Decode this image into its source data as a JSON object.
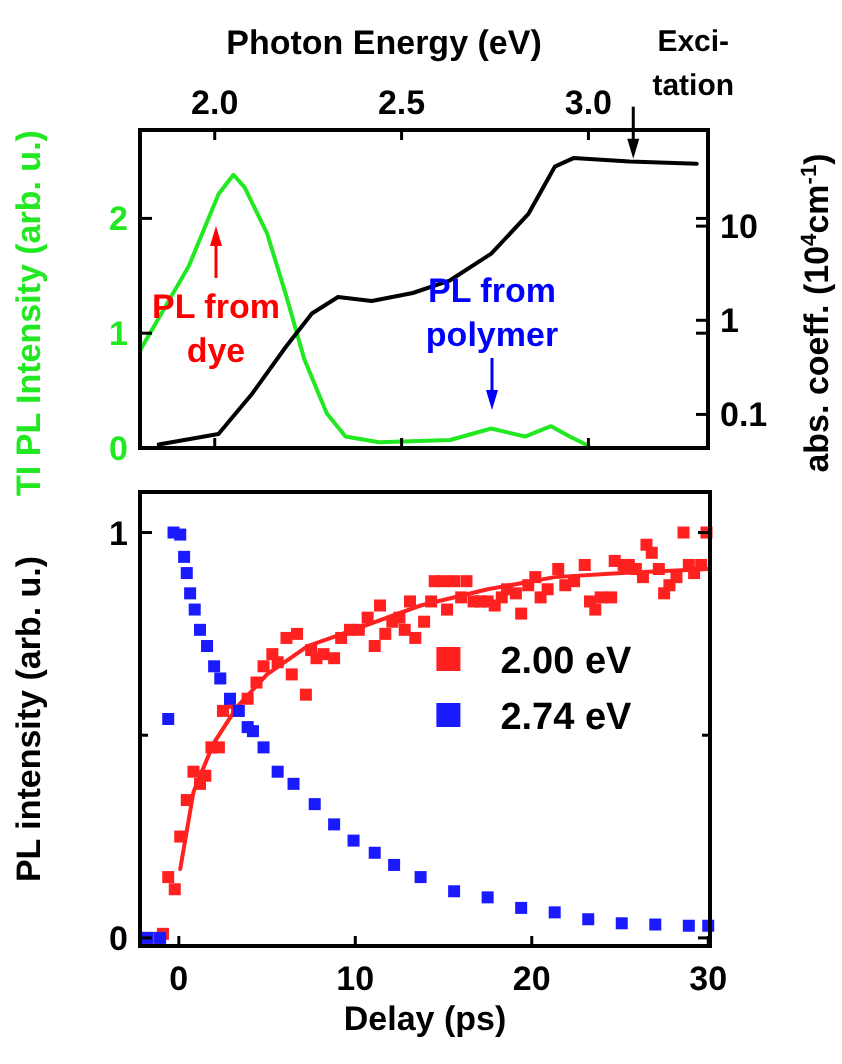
{
  "chart_data": [
    {
      "type": "line",
      "xlabel": "Photon Energy (eV)",
      "ylabel": "TI PL Intensity (arb. u.)",
      "y2label": "abs. coeff. (10$^{4}$cm$^{-1}$)",
      "xlim": [
        1.8,
        3.32
      ],
      "xticks": [
        {
          "value": 2,
          "label": "2.0"
        },
        {
          "value": 2.5,
          "label": "2.5"
        },
        {
          "value": 3,
          "label": "3.0"
        }
      ],
      "ylim": [
        0,
        2.77
      ],
      "yticks": [
        0,
        1,
        2
      ],
      "y2lim": [
        0.044,
        105
      ],
      "y2ticks": [
        0.1,
        1,
        10
      ],
      "log": "y2",
      "grid": false,
      "legend": false,
      "series": [
        {
          "color": "#22e822",
          "x": [
            1.8,
            1.93,
            2.01,
            2.05,
            2.08,
            2.14,
            2.19,
            2.24,
            2.3,
            2.35,
            2.44,
            2.63,
            2.74,
            2.83,
            2.9,
            2.95,
            3.0
          ],
          "values": [
            0.85,
            1.58,
            2.21,
            2.38,
            2.27,
            1.87,
            1.34,
            0.77,
            0.3,
            0.1,
            0.05,
            0.07,
            0.17,
            0.1,
            0.19,
            0.1,
            0.02
          ]
        },
        {
          "axis": "y2",
          "color": "#000000",
          "x": [
            1.85,
            2.01,
            2.1,
            2.19,
            2.26,
            2.33,
            2.42,
            2.53,
            2.63,
            2.74,
            2.84,
            2.91,
            2.96,
            3.11,
            3.29
          ],
          "values": [
            0.048,
            0.062,
            0.166,
            0.52,
            1.18,
            1.77,
            1.6,
            1.95,
            2.66,
            5.1,
            13.6,
            42.8,
            52.8,
            48.6,
            46
          ]
        }
      ],
      "annotations": [
        "PL from dye",
        "PL from polymer",
        {
          "text": "Exci-tation",
          "x": 3.12,
          "y": 2.52
        }
      ]
    },
    {
      "type": "scatter",
      "xlabel": "Delay (ps)",
      "ylabel": "PL intensity (arb. u.)",
      "xlim": [
        -2.2,
        30.1
      ],
      "xticks": [
        0,
        10,
        20,
        30
      ],
      "ylim": [
        -0.02,
        1.1
      ],
      "yticks": [
        0,
        {
          "value": 0.5,
          "label": null
        },
        1
      ],
      "marker": "square",
      "legend": "right",
      "grid": false,
      "series": [
        {
          "name": "2.00 eV",
          "color": "#ff2020",
          "x": [
            -1.8,
            -1.25,
            -0.9,
            -0.6,
            -0.23,
            0.08,
            0.45,
            0.83,
            1.2,
            1.5,
            1.85,
            2.27,
            2.5,
            2.9,
            3.3,
            3.9,
            4.4,
            4.8,
            5.3,
            5.6,
            6.1,
            6.4,
            6.7,
            7.2,
            7.5,
            7.8,
            8.2,
            8.8,
            9.2,
            9.7,
            10.2,
            10.7,
            11.1,
            11.4,
            11.7,
            12.1,
            12.5,
            12.8,
            13.1,
            13.4,
            13.9,
            14.3,
            14.5,
            15.0,
            15.2,
            15.6,
            16.0,
            16.3,
            16.7,
            17.1,
            17.5,
            17.9,
            18.3,
            18.6,
            19.1,
            19.4,
            19.8,
            20.2,
            20.5,
            20.9,
            21.5,
            21.9,
            22.4,
            23.0,
            23.3,
            23.6,
            23.9,
            24.5,
            24.7,
            25.2,
            25.5,
            25.9,
            26.3,
            26.5,
            26.8,
            27.2,
            27.5,
            27.8,
            28.2,
            28.6,
            28.9,
            29.2,
            29.6,
            29.9
          ],
          "values": [
            0,
            0,
            0.01,
            0.15,
            0.12,
            0.25,
            0.34,
            0.41,
            0.38,
            0.4,
            0.47,
            0.47,
            0.56,
            0.58,
            0.56,
            0.59,
            0.63,
            0.67,
            0.7,
            0.68,
            0.74,
            0.65,
            0.75,
            0.6,
            0.71,
            0.69,
            0.7,
            0.69,
            0.74,
            0.76,
            0.76,
            0.79,
            0.72,
            0.82,
            0.75,
            0.78,
            0.79,
            0.76,
            0.83,
            0.74,
            0.78,
            0.83,
            0.88,
            0.88,
            0.81,
            0.88,
            0.84,
            0.88,
            0.83,
            0.83,
            0.83,
            0.82,
            0.84,
            0.86,
            0.85,
            0.8,
            0.87,
            0.89,
            0.84,
            0.86,
            0.91,
            0.87,
            0.88,
            0.92,
            0.83,
            0.81,
            0.84,
            0.84,
            0.93,
            0.92,
            0.92,
            0.91,
            0.89,
            0.97,
            0.95,
            0.91,
            0.85,
            0.87,
            0.89,
            1.0,
            0.92,
            0.9,
            0.92,
            1.0
          ]
        },
        {
          "type": "line",
          "color": "#ff2020",
          "marker": "none",
          "x": [
            0.08,
            0.83,
            1.97,
            3.3,
            5.0,
            7.3,
            9.9,
            13.7,
            17.5,
            21.3,
            25.1,
            30
          ],
          "values": [
            0.17,
            0.36,
            0.48,
            0.57,
            0.65,
            0.72,
            0.76,
            0.82,
            0.86,
            0.89,
            0.9,
            0.91
          ]
        },
        {
          "name": "2.74 eV",
          "color": "#1a1aff",
          "x": [
            -1.8,
            -1.06,
            -0.6,
            -0.3,
            0.08,
            0.3,
            0.45,
            0.64,
            0.9,
            1.2,
            1.6,
            2.0,
            2.35,
            2.9,
            3.4,
            3.9,
            4.2,
            4.8,
            5.6,
            6.5,
            7.7,
            8.8,
            9.9,
            11.1,
            12.2,
            13.7,
            15.6,
            17.5,
            19.4,
            21.3,
            23.2,
            25.1,
            27.0,
            28.9,
            30
          ],
          "values": [
            0,
            0,
            0.54,
            1.0,
            0.995,
            0.94,
            0.9,
            0.85,
            0.81,
            0.76,
            0.72,
            0.67,
            0.64,
            0.59,
            0.56,
            0.52,
            0.51,
            0.47,
            0.41,
            0.38,
            0.33,
            0.28,
            0.24,
            0.21,
            0.18,
            0.15,
            0.115,
            0.1,
            0.074,
            0.063,
            0.046,
            0.036,
            0.033,
            0.03,
            0.03
          ]
        }
      ]
    }
  ]
}
